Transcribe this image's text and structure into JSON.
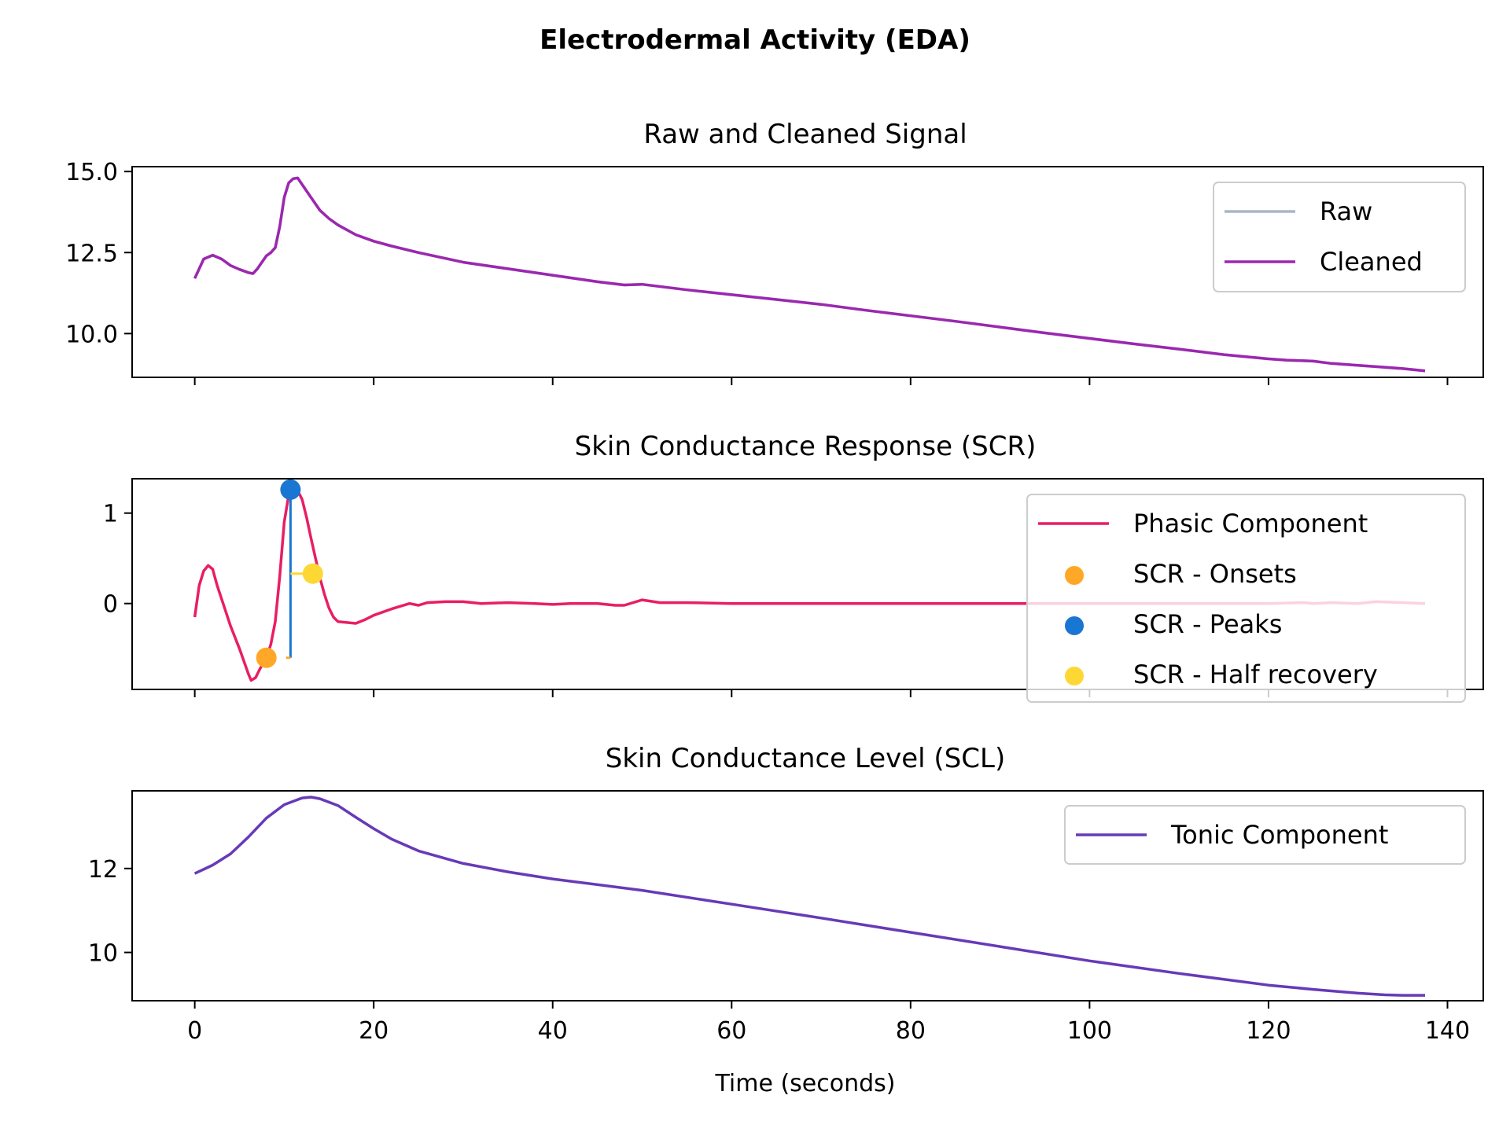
{
  "figure": {
    "title": "Electrodermal Activity (EDA)",
    "xlabel": "Time (seconds)"
  },
  "chart_data": [
    {
      "type": "line",
      "title": "Raw and Cleaned Signal",
      "xlabel": "",
      "ylabel": "",
      "xlim": [
        -7,
        144
      ],
      "ylim": [
        8.65,
        15.15
      ],
      "xticks": [
        0,
        20,
        40,
        60,
        80,
        100,
        120,
        140
      ],
      "xtick_labels_visible": false,
      "yticks": [
        10.0,
        12.5,
        15.0
      ],
      "ytick_labels": [
        "10.0",
        "12.5",
        "15.0"
      ],
      "legend": {
        "position": "upper right"
      },
      "grid": false,
      "series": [
        {
          "name": "Raw",
          "color": "#a9b7c6",
          "x": [
            0,
            1,
            2,
            3,
            4,
            5,
            6,
            6.5,
            7,
            8,
            8.5,
            9,
            9.5,
            10,
            10.5,
            11,
            11.5,
            12,
            13,
            14,
            15,
            16,
            18,
            20,
            22,
            25,
            30,
            35,
            40,
            45,
            48,
            50,
            55,
            60,
            65,
            70,
            75,
            80,
            85,
            90,
            95,
            100,
            105,
            110,
            115,
            120,
            122,
            125,
            127,
            130,
            132,
            135,
            137.5
          ],
          "y": [
            11.7,
            12.3,
            12.42,
            12.3,
            12.1,
            11.98,
            11.88,
            11.85,
            12.0,
            12.4,
            12.5,
            12.65,
            13.3,
            14.2,
            14.65,
            14.78,
            14.8,
            14.6,
            14.2,
            13.8,
            13.55,
            13.35,
            13.05,
            12.85,
            12.7,
            12.5,
            12.2,
            12.0,
            11.8,
            11.6,
            11.5,
            11.52,
            11.35,
            11.2,
            11.05,
            10.9,
            10.72,
            10.55,
            10.38,
            10.2,
            10.02,
            9.85,
            9.68,
            9.52,
            9.35,
            9.22,
            9.18,
            9.15,
            9.08,
            9.02,
            8.98,
            8.92,
            8.85
          ]
        },
        {
          "name": "Cleaned",
          "color": "#9c27b0",
          "x": [
            0,
            1,
            2,
            3,
            4,
            5,
            6,
            6.5,
            7,
            8,
            8.5,
            9,
            9.5,
            10,
            10.5,
            11,
            11.5,
            12,
            13,
            14,
            15,
            16,
            18,
            20,
            22,
            25,
            30,
            35,
            40,
            45,
            48,
            50,
            55,
            60,
            65,
            70,
            75,
            80,
            85,
            90,
            95,
            100,
            105,
            110,
            115,
            120,
            122,
            125,
            127,
            130,
            132,
            135,
            137.5
          ],
          "y": [
            11.7,
            12.3,
            12.42,
            12.3,
            12.1,
            11.98,
            11.88,
            11.85,
            12.0,
            12.4,
            12.5,
            12.65,
            13.3,
            14.2,
            14.65,
            14.78,
            14.8,
            14.6,
            14.2,
            13.8,
            13.55,
            13.35,
            13.05,
            12.85,
            12.7,
            12.5,
            12.2,
            12.0,
            11.8,
            11.6,
            11.5,
            11.52,
            11.35,
            11.2,
            11.05,
            10.9,
            10.72,
            10.55,
            10.38,
            10.2,
            10.02,
            9.85,
            9.68,
            9.52,
            9.35,
            9.22,
            9.18,
            9.15,
            9.08,
            9.02,
            8.98,
            8.92,
            8.85
          ]
        }
      ]
    },
    {
      "type": "line",
      "title": "Skin Conductance Response (SCR)",
      "xlabel": "",
      "ylabel": "",
      "xlim": [
        -7,
        144
      ],
      "ylim": [
        -0.95,
        1.38
      ],
      "xticks": [
        0,
        20,
        40,
        60,
        80,
        100,
        120,
        140
      ],
      "xtick_labels_visible": false,
      "yticks": [
        0,
        1
      ],
      "ytick_labels": [
        "0",
        "1"
      ],
      "legend": {
        "position": "right"
      },
      "grid": false,
      "series": [
        {
          "name": "Phasic Component",
          "color": "#e91e63",
          "x": [
            0,
            0.5,
            1,
            1.5,
            2,
            2.5,
            3,
            4,
            5,
            6,
            6.3,
            6.8,
            7.3,
            8,
            8.5,
            9,
            9.5,
            10,
            10.5,
            11,
            11.5,
            12,
            12.5,
            13,
            13.5,
            14,
            14.5,
            15,
            15.5,
            16,
            17,
            18,
            19,
            20,
            22,
            24,
            25,
            26,
            28,
            30,
            32,
            35,
            38,
            40,
            42,
            45,
            47,
            48,
            50,
            52,
            55,
            60,
            70,
            80,
            90,
            100,
            110,
            120,
            124,
            125,
            127,
            130,
            132,
            135,
            137.5
          ],
          "y": [
            -0.15,
            0.2,
            0.36,
            0.42,
            0.38,
            0.2,
            0.05,
            -0.25,
            -0.5,
            -0.78,
            -0.85,
            -0.82,
            -0.72,
            -0.6,
            -0.45,
            -0.2,
            0.3,
            0.9,
            1.2,
            1.26,
            1.25,
            1.15,
            0.95,
            0.72,
            0.5,
            0.28,
            0.1,
            -0.05,
            -0.15,
            -0.2,
            -0.21,
            -0.22,
            -0.18,
            -0.13,
            -0.06,
            0.0,
            -0.02,
            0.01,
            0.02,
            0.02,
            0.0,
            0.01,
            0.0,
            -0.01,
            0.0,
            0.0,
            -0.02,
            -0.02,
            0.04,
            0.01,
            0.01,
            0.0,
            0.0,
            0.0,
            0.0,
            0.0,
            0.0,
            0.0,
            0.01,
            0.0,
            0.01,
            0.0,
            0.02,
            0.01,
            0.0
          ]
        },
        {
          "name": "SCR - Onsets",
          "color": "#ffa726",
          "type": "scatter",
          "points": [
            {
              "x": 8,
              "y": -0.6
            }
          ]
        },
        {
          "name": "SCR - Peaks",
          "color": "#1976d2",
          "type": "scatter",
          "points": [
            {
              "x": 10.7,
              "y": 1.26
            }
          ]
        },
        {
          "name": "SCR - Half recovery",
          "color": "#fdd835",
          "type": "scatter",
          "points": [
            {
              "x": 13.2,
              "y": 0.33
            }
          ]
        }
      ],
      "annotations": {
        "peak_line": {
          "x": 10.7,
          "y_from": -0.6,
          "y_to": 1.26,
          "color": "#1976d2"
        },
        "onset_tick": {
          "x_from": 10.2,
          "x_to": 10.7,
          "y": -0.6,
          "color": "#ffa726"
        },
        "half_recovery_tick": {
          "x_from": 10.7,
          "x_to": 13.2,
          "y": 0.33,
          "color": "#fdd835"
        }
      }
    },
    {
      "type": "line",
      "title": "Skin Conductance Level (SCL)",
      "xlabel": "Time (seconds)",
      "ylabel": "",
      "xlim": [
        -7,
        144
      ],
      "ylim": [
        8.85,
        13.85
      ],
      "xticks": [
        0,
        20,
        40,
        60,
        80,
        100,
        120,
        140
      ],
      "xtick_labels": [
        "0",
        "20",
        "40",
        "60",
        "80",
        "100",
        "120",
        "140"
      ],
      "xtick_labels_visible": true,
      "yticks": [
        10,
        12
      ],
      "ytick_labels": [
        "10",
        "12"
      ],
      "legend": {
        "position": "upper right"
      },
      "grid": false,
      "series": [
        {
          "name": "Tonic Component",
          "color": "#673ab7",
          "x": [
            0,
            2,
            4,
            6,
            8,
            10,
            12,
            13,
            14,
            16,
            18,
            20,
            22,
            25,
            30,
            35,
            40,
            50,
            60,
            70,
            80,
            90,
            100,
            110,
            120,
            125,
            130,
            133,
            135,
            137.5
          ],
          "y": [
            11.88,
            12.08,
            12.35,
            12.75,
            13.2,
            13.52,
            13.68,
            13.7,
            13.66,
            13.5,
            13.22,
            12.95,
            12.7,
            12.42,
            12.12,
            11.92,
            11.75,
            11.48,
            11.15,
            10.82,
            10.48,
            10.14,
            9.8,
            9.5,
            9.22,
            9.12,
            9.03,
            8.99,
            8.98,
            8.98
          ]
        }
      ]
    }
  ]
}
